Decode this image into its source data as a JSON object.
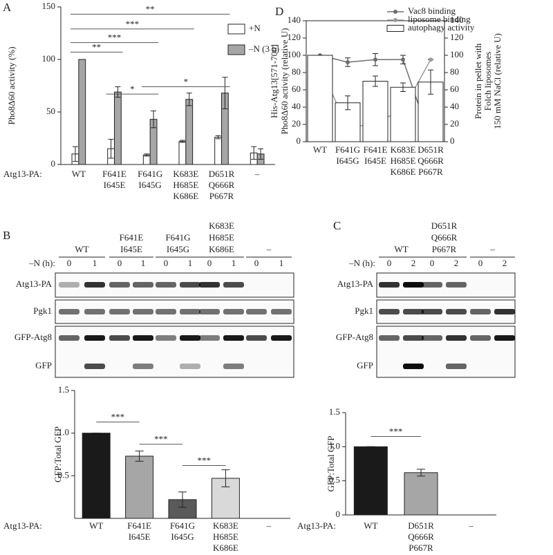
{
  "panel_labels": [
    "A",
    "B",
    "C",
    "D"
  ],
  "chart_data": [
    {
      "type": "bar",
      "ylabel": "Pho8Δ60 activity (%)",
      "xlabel": "Atg13-PA:",
      "categories": [
        [
          "WT"
        ],
        [
          "F641E",
          "I645E"
        ],
        [
          "F641G",
          "I645G"
        ],
        [
          "K683E",
          "H685E",
          "K686E"
        ],
        [
          "D651R",
          "Q666R",
          "P667R"
        ],
        [
          "–"
        ]
      ],
      "series": [
        {
          "name": "+N",
          "color": "#ffffff",
          "values": [
            10,
            15,
            9,
            22,
            26,
            11
          ],
          "errors": [
            7,
            9,
            1,
            1,
            1.5,
            6
          ]
        },
        {
          "name": "–N (3 h)",
          "color": "#a6a6a6",
          "values": [
            100,
            69,
            43,
            62,
            68,
            10
          ],
          "errors": [
            0,
            5,
            8,
            6,
            15,
            5
          ]
        }
      ],
      "ylim": [
        0,
        150
      ],
      "yticks": [
        0,
        50,
        100,
        150
      ],
      "legend": "upper right",
      "significance": [
        {
          "label": "**",
          "y": 143,
          "between": [
            "WT",
            "D651R"
          ]
        },
        {
          "label": "***",
          "y": 129,
          "between": [
            "WT",
            "K683E"
          ]
        },
        {
          "label": "***",
          "y": 116,
          "between": [
            "WT",
            "F641G"
          ]
        },
        {
          "label": "**",
          "y": 107,
          "between": [
            "WT",
            "F641E"
          ]
        },
        {
          "label": "*",
          "y": 74,
          "between": [
            "F641G",
            "D651R"
          ]
        },
        {
          "label": "*",
          "y": 67,
          "between": [
            "F641E",
            "F641G"
          ]
        }
      ]
    },
    {
      "type": "combo",
      "ylabel": [
        "His-Atg13[571-700]",
        "Pho8Δ60 activity (relative U)"
      ],
      "y2label": [
        "Protein in pellet with",
        "Folch liposomes",
        "150 mM NaCl (relative U)"
      ],
      "categories": [
        [
          "WT"
        ],
        [
          "F641G",
          "I645G"
        ],
        [
          "F641E",
          "I645E"
        ],
        [
          "K683E",
          "H685E",
          "K686E"
        ],
        [
          "D651R",
          "Q666R",
          "P667R"
        ]
      ],
      "series": [
        {
          "name": "Vac8 binding",
          "type": "line",
          "axis": "y2",
          "color": "#6e6e6e",
          "values": [
            100,
            92,
            95,
            95,
            2
          ],
          "errors": [
            0,
            5,
            7,
            5,
            0
          ]
        },
        {
          "name": "liposome binding",
          "type": "line",
          "axis": "y2",
          "color": "#9a9a9a",
          "values": [
            88,
            15,
            22,
            37,
            95
          ],
          "errors": [
            5,
            0,
            5,
            10,
            0
          ]
        },
        {
          "name": "autophagy activity",
          "type": "bar",
          "color": "#ffffff",
          "values": [
            100,
            45,
            70,
            63,
            69
          ],
          "errors": [
            0,
            8,
            6,
            5,
            14
          ]
        }
      ],
      "ylim": [
        0,
        140
      ],
      "yticks": [
        0,
        20,
        40,
        60,
        80,
        100,
        120,
        140
      ],
      "y2lim": [
        0,
        140
      ],
      "y2ticks": [
        0,
        20,
        40,
        60,
        80,
        100,
        120,
        140
      ],
      "legend": "upper right"
    },
    {
      "type": "bar",
      "ylabel": "GFP:Total GFP",
      "xlabel": "Atg13-PA:",
      "categories": [
        [
          "WT"
        ],
        [
          "F641E",
          "I645E"
        ],
        [
          "F641G",
          "I645G"
        ],
        [
          "K683E",
          "H685E",
          "K686E"
        ],
        [
          "–"
        ]
      ],
      "values": [
        1,
        0.73,
        0.22,
        0.47,
        null
      ],
      "errors": [
        0,
        0.06,
        0.09,
        0.1,
        null
      ],
      "colors": [
        "#1a1a1a",
        "#a6a6a6",
        "#5a5a5a",
        "#d9d9d9",
        "#ffffff"
      ],
      "ylim": [
        0,
        1.5
      ],
      "yticks": [
        0.5,
        {
          "value": 1,
          "label": "1.0"
        },
        1.5
      ],
      "significance": [
        {
          "label": "***",
          "y": 1.13,
          "between": [
            "WT",
            "F641E"
          ]
        },
        {
          "label": "***",
          "y": 0.87,
          "between": [
            "F641E",
            "F641G"
          ]
        },
        {
          "label": "***",
          "y": 0.62,
          "between": [
            "F641G",
            "K683E"
          ]
        }
      ]
    },
    {
      "type": "bar",
      "ylabel": "GFP:Total GFP",
      "xlabel": "Atg13-PA:",
      "categories": [
        [
          "WT"
        ],
        [
          "D651R",
          "Q666R",
          "P667R"
        ],
        [
          "–"
        ]
      ],
      "values": [
        1,
        0.62,
        null
      ],
      "errors": [
        0,
        0.05,
        null
      ],
      "colors": [
        "#1a1a1a",
        "#a6a6a6",
        "#ffffff"
      ],
      "ylim": [
        0,
        1.5
      ],
      "yticks": [
        0,
        0.5,
        {
          "value": 1,
          "label": "1.0"
        },
        1.5
      ],
      "significance": [
        {
          "label": "***",
          "y": 1.15,
          "between": [
            "WT",
            "D651R"
          ]
        }
      ]
    }
  ],
  "blots": [
    {
      "groups": [
        [
          "WT"
        ],
        [
          "F641E",
          "I645E"
        ],
        [
          "F641G",
          "I645G"
        ],
        [
          "K683E",
          "H685E",
          "K686E"
        ],
        [
          "–"
        ]
      ],
      "time_label": "–N (h):",
      "times": [
        0,
        1,
        0,
        1,
        0,
        1,
        0,
        1,
        0,
        1
      ],
      "rows": [
        "Atg13-PA",
        "Pgk1",
        "GFP-Atg8",
        "GFP"
      ]
    },
    {
      "groups": [
        [
          "WT"
        ],
        [
          "D651R",
          "Q666R",
          "P667R"
        ],
        [
          "–"
        ]
      ],
      "time_label": "–N (h):",
      "times": [
        0,
        2,
        0,
        2,
        0,
        2
      ],
      "rows": [
        "Atg13-PA",
        "Pgk1",
        "GFP-Atg8",
        "GFP"
      ]
    }
  ]
}
